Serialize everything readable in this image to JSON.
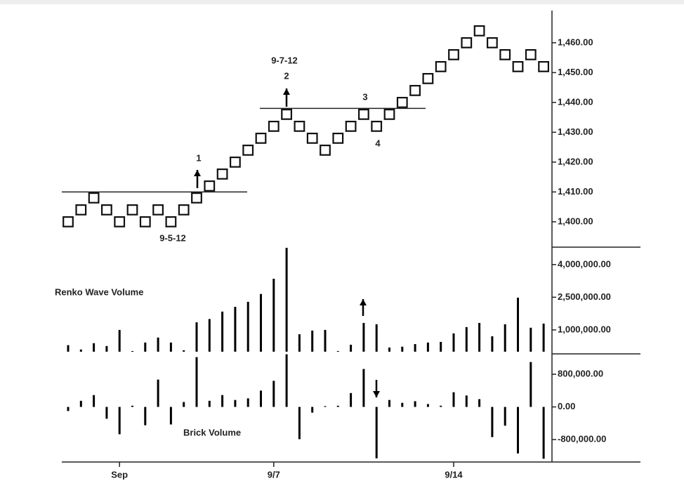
{
  "chart_data": [
    {
      "type": "renko",
      "color": "#111111",
      "brick_size": 4,
      "values": [
        1400,
        1404,
        1408,
        1404,
        1400,
        1404,
        1400,
        1404,
        1400,
        1404,
        1408,
        1412,
        1416,
        1420,
        1424,
        1428,
        1432,
        1436,
        1432,
        1428,
        1424,
        1428,
        1432,
        1436,
        1432,
        1436,
        1440,
        1444,
        1448,
        1452,
        1456,
        1460,
        1464,
        1460,
        1456,
        1452,
        1456,
        1452
      ],
      "levels": [
        1410,
        1438
      ],
      "annotations": [
        "1",
        "9-5-12",
        "9-7-12",
        "2",
        "3",
        "4"
      ],
      "ylim": [
        1391.5,
        1470.8
      ],
      "yticks": [
        {
          "value": 1460,
          "label": "1,460.00"
        },
        {
          "value": 1450,
          "label": "1,450.00"
        },
        {
          "value": 1440,
          "label": "1,440.00"
        },
        {
          "value": 1430,
          "label": "1,430.00"
        },
        {
          "value": 1420,
          "label": "1,420.00"
        },
        {
          "value": 1410,
          "label": "1,410.00"
        },
        {
          "value": 1400,
          "label": "1,400.00"
        }
      ]
    },
    {
      "type": "bar",
      "title": "Renko Wave Volume",
      "color": "#000000",
      "values": [
        300000,
        100000,
        390000,
        260000,
        1000000,
        30000,
        420000,
        650000,
        420000,
        65000,
        1350000,
        1500000,
        1840000,
        2060000,
        2290000,
        2650000,
        3350000,
        4770000,
        800000,
        970000,
        1000000,
        30000,
        320000,
        1320000,
        1260000,
        190000,
        230000,
        350000,
        420000,
        450000,
        840000,
        1130000,
        1320000,
        710000,
        1260000,
        2480000,
        1100000,
        1290000
      ],
      "ylim": [
        -100000,
        4800000
      ],
      "yticks": [
        {
          "value": 4000000,
          "label": "4,000,000.00"
        },
        {
          "value": 2500000,
          "label": "2,500,000.00"
        },
        {
          "value": 1000000,
          "label": "1,000,000.00"
        }
      ]
    },
    {
      "type": "bar",
      "title": "Brick Volume",
      "color": "#000000",
      "values": [
        -100000,
        150000,
        290000,
        -290000,
        -670000,
        30000,
        -450000,
        670000,
        -430000,
        120000,
        1220000,
        150000,
        290000,
        170000,
        210000,
        400000,
        640000,
        1290000,
        -790000,
        -140000,
        20000,
        30000,
        340000,
        930000,
        -1260000,
        170000,
        100000,
        140000,
        70000,
        30000,
        360000,
        280000,
        190000,
        -740000,
        -460000,
        -1140000,
        1100000,
        -1270000
      ],
      "categories": [
        null,
        null,
        null,
        null,
        "Sep",
        null,
        null,
        null,
        null,
        null,
        null,
        null,
        null,
        null,
        null,
        null,
        "9/7",
        null,
        null,
        null,
        null,
        null,
        null,
        null,
        null,
        null,
        null,
        null,
        null,
        null,
        "9/14",
        null,
        null,
        null,
        null,
        null,
        null,
        null
      ],
      "ylim": [
        -1350000,
        1300000
      ],
      "yticks": [
        {
          "value": 800000,
          "label": "800,000.00"
        },
        {
          "value": 0,
          "label": "0.00"
        },
        {
          "value": -800000,
          "label": "-800,000.00"
        }
      ]
    }
  ]
}
